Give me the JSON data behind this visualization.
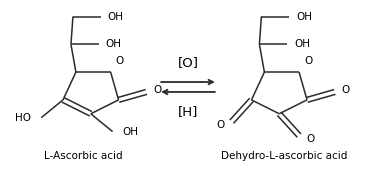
{
  "background_color": "#ffffff",
  "fig_width": 3.75,
  "fig_height": 1.72,
  "dpi": 100,
  "label_left": "L-Ascorbic acid",
  "label_right": "Dehydro-L-ascorbic acid",
  "label_fontsize": 7.5,
  "arrow_label_top": "[O]",
  "arrow_label_bottom": "[H]",
  "arrow_label_fontsize": 9.5,
  "line_color": "#2b2b2b",
  "text_color": "#000000",
  "line_width": 1.1
}
